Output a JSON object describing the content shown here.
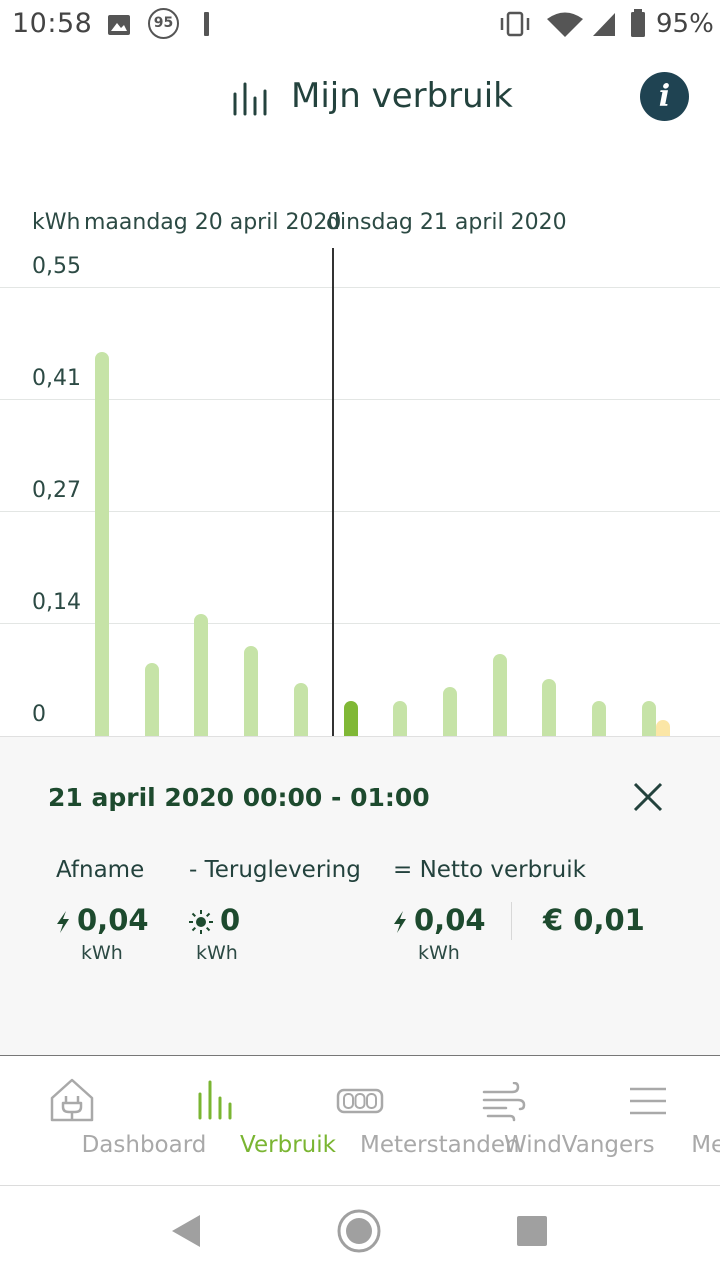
{
  "status_bar": {
    "time": "10:58",
    "notification_badge": "95",
    "battery": "95%"
  },
  "header": {
    "title": "Mijn verbruik",
    "info_label": "i"
  },
  "chart_data": {
    "type": "bar",
    "ylabel": "kWh",
    "period_left": "maandag 20 april 2020",
    "period_right": "dinsdag 21 april 2020",
    "y_ticks": [
      "0,55",
      "0,41",
      "0,27",
      "0,14",
      "0"
    ],
    "ylim": [
      0,
      0.55
    ],
    "grid": true,
    "series": [
      {
        "values": [
          0.47,
          0.09,
          0.15,
          0.11,
          0.065,
          0.043,
          0.043,
          0.06,
          0.1,
          0.07,
          0.043,
          0.043
        ]
      },
      {
        "values": [
          0,
          0,
          0,
          0,
          0,
          0,
          0,
          0,
          0,
          0,
          0,
          0.02
        ]
      }
    ],
    "selected_index": 5,
    "colors": {
      "bar": "#c6e3a7",
      "bar_selected": "#80b836",
      "return_bar": "#fbe6a6"
    }
  },
  "detail": {
    "title": "21 april 2020 00:00 - 01:00",
    "afname_label": "Afname",
    "afname_value": "0,04",
    "afname_unit": "kWh",
    "teruglevering_label": "- Teruglevering",
    "teruglevering_value": "0",
    "teruglevering_unit": "kWh",
    "netto_label": "= Netto verbruik",
    "netto_value": "0,04",
    "netto_unit": "kWh",
    "cost": "€ 0,01"
  },
  "nav": {
    "items": [
      {
        "label": "Dashboard"
      },
      {
        "label": "Verbruik"
      },
      {
        "label": "Meterstanden"
      },
      {
        "label": "WindVangers"
      },
      {
        "label": "Meer"
      }
    ],
    "active_index": 1,
    "active_color": "#7ab532"
  }
}
